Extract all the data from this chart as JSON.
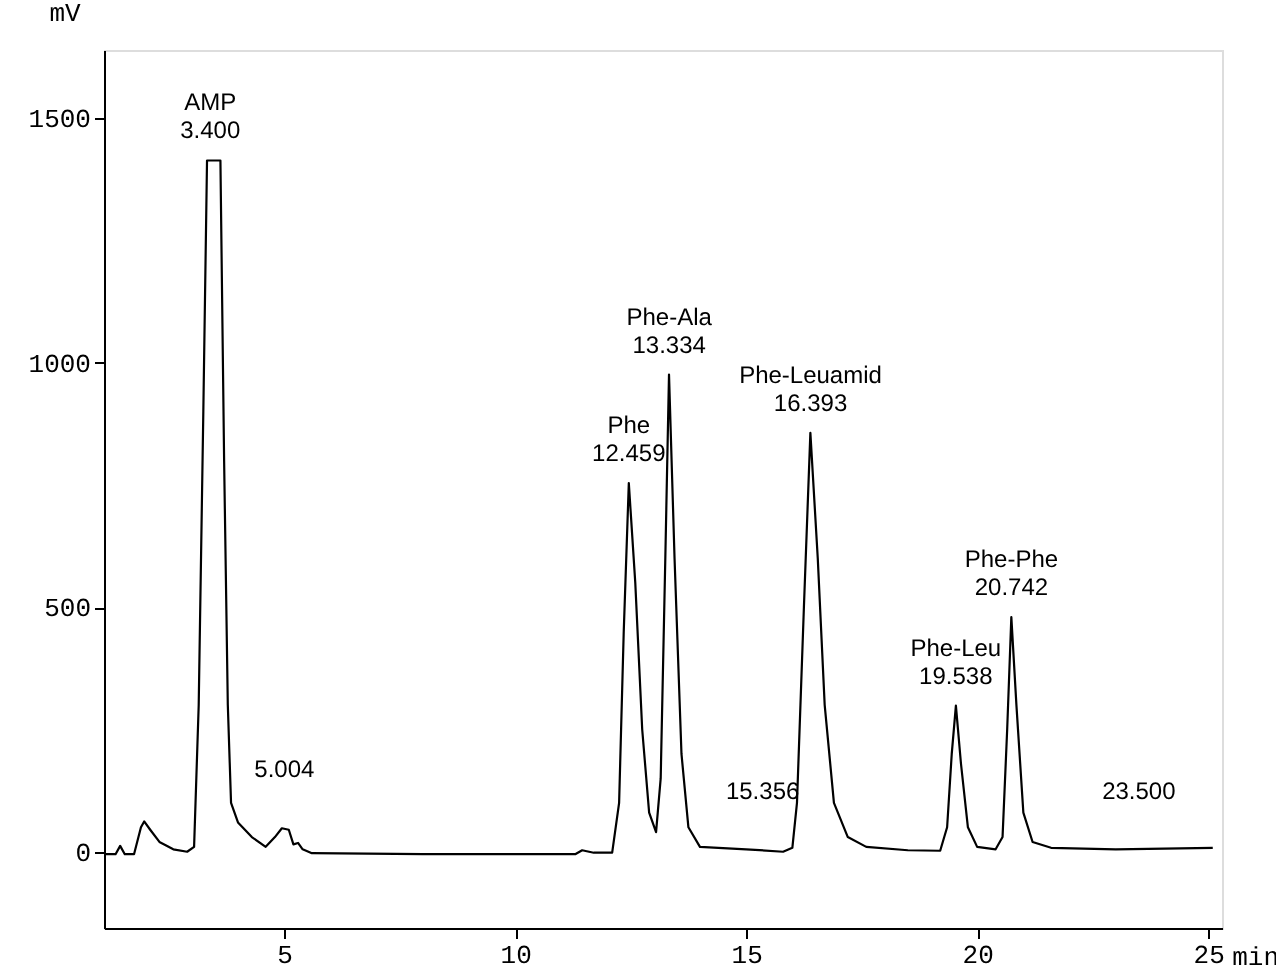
{
  "chart_data": {
    "type": "line",
    "xlabel": "min",
    "ylabel": "mV",
    "xlim": [
      1.1,
      25.3
    ],
    "ylim": [
      -156,
      1640
    ],
    "xticks": [
      5,
      10,
      15,
      20,
      25
    ],
    "yticks": [
      0,
      500,
      1000,
      1500
    ],
    "grid": false,
    "marker": "none",
    "line_style": "solid",
    "series": [
      {
        "color": "#000000",
        "x": [
          1.1,
          1.35,
          1.45,
          1.55,
          1.75,
          1.9,
          1.97,
          2.1,
          2.3,
          2.6,
          2.9,
          3.05,
          3.15,
          3.25,
          3.33,
          3.62,
          3.7,
          3.78,
          3.85,
          4.0,
          4.3,
          4.6,
          4.8,
          4.95,
          5.1,
          5.2,
          5.3,
          5.4,
          5.6,
          8,
          11.3,
          11.45,
          11.7,
          12.1,
          12.25,
          12.35,
          12.46,
          12.6,
          12.75,
          12.9,
          13.05,
          13.15,
          13.25,
          13.33,
          13.45,
          13.6,
          13.75,
          14,
          15,
          15.8,
          16.0,
          16.1,
          16.25,
          16.39,
          16.55,
          16.7,
          16.9,
          17.2,
          17.6,
          18.5,
          19.2,
          19.35,
          19.45,
          19.54,
          19.65,
          19.8,
          20.0,
          20.4,
          20.55,
          20.65,
          20.74,
          20.85,
          21.0,
          21.2,
          21.6,
          23,
          25.1
        ],
        "values": [
          -5,
          -5,
          12,
          -5,
          -5,
          50,
          62,
          45,
          20,
          5,
          0,
          10,
          300,
          900,
          1414,
          1414,
          800,
          300,
          100,
          60,
          30,
          10,
          30,
          48,
          45,
          15,
          18,
          5,
          -3,
          -5,
          -5,
          3,
          -2,
          -2,
          100,
          450,
          754,
          550,
          250,
          80,
          40,
          150,
          600,
          976,
          600,
          200,
          50,
          10,
          5,
          0,
          8,
          100,
          500,
          857,
          600,
          300,
          100,
          30,
          10,
          3,
          2,
          50,
          200,
          299,
          180,
          50,
          10,
          5,
          30,
          250,
          480,
          300,
          80,
          20,
          8,
          5,
          8
        ]
      }
    ],
    "annotations": [
      {
        "text": "AMP\n3.400",
        "x": 3.4,
        "y": 1414
      },
      {
        "text": "5.004",
        "x": 5.004,
        "y": 50
      },
      {
        "text": "Phe\n12.459",
        "x": 12.459,
        "y": 754
      },
      {
        "text": "Phe-Ala\n13.334",
        "x": 13.334,
        "y": 976
      },
      {
        "text": "15.356",
        "x": 15.356,
        "y": 5
      },
      {
        "text": "Phe-Leuamid\n16.393",
        "x": 16.393,
        "y": 857
      },
      {
        "text": "Phe-Leu\n19.538",
        "x": 19.538,
        "y": 299
      },
      {
        "text": "Phe-Phe\n20.742",
        "x": 20.742,
        "y": 480
      },
      {
        "text": "23.500",
        "x": 23.5,
        "y": 5
      }
    ]
  }
}
